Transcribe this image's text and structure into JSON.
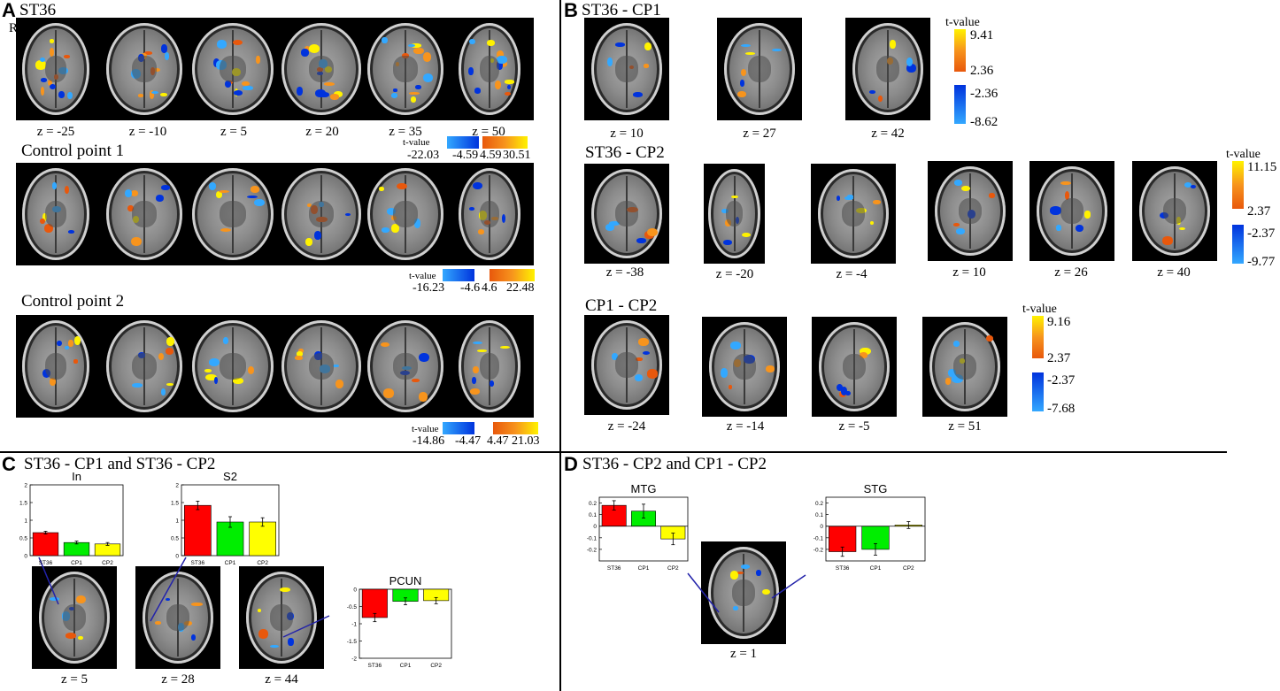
{
  "panels": {
    "A": {
      "label": "A",
      "rows": [
        {
          "title": "ST36",
          "z": [
            "z = -25",
            "z = -10",
            "z = 5",
            "z = 20",
            "z = 35",
            "z = 50"
          ],
          "tlabel": "t-value",
          "neg": [
            "-22.03",
            "-4.59"
          ],
          "pos": [
            "4.59",
            "30.51"
          ]
        },
        {
          "title": "Control point 1",
          "tlabel": "t-value",
          "neg": [
            "-16.23",
            "-4.6"
          ],
          "pos": [
            "4.6",
            "22.48"
          ]
        },
        {
          "title": "Control point 2",
          "tlabel": "t-value",
          "neg": [
            "-14.86",
            "-4.47"
          ],
          "pos": [
            "4.47",
            "21.03"
          ]
        }
      ],
      "side_marker": "R"
    },
    "B": {
      "label": "B",
      "rows": [
        {
          "title": "ST36 - CP1",
          "z": [
            "z = 10",
            "z = 27",
            "z = 42"
          ],
          "tlabel": "t-value",
          "values": [
            "9.41",
            "2.36",
            "-2.36",
            "-8.62"
          ]
        },
        {
          "title": "ST36 - CP2",
          "z": [
            "z = -38",
            "z = -20",
            "z = -4",
            "z = 10",
            "z = 26",
            "z = 40"
          ],
          "tlabel": "t-value",
          "values": [
            "11.15",
            "2.37",
            "-2.37",
            "-9.77"
          ]
        },
        {
          "title": "CP1 - CP2",
          "z": [
            "z = -24",
            "z = -14",
            "z = -5",
            "z = 51"
          ],
          "tlabel": "t-value",
          "values": [
            "9.16",
            "2.37",
            "-2.37",
            "-7.68"
          ]
        }
      ]
    },
    "C": {
      "label": "C",
      "title": "ST36 - CP1 and ST36 - CP2",
      "z": [
        "z = 5",
        "z = 28",
        "z = 44"
      ]
    },
    "D": {
      "label": "D",
      "title": "ST36 - CP2 and CP1 - CP2",
      "z": [
        "z = 1"
      ]
    }
  },
  "colors": {
    "pos_dark": "#e8580c",
    "pos_mid": "#f7941d",
    "pos_light": "#fff200",
    "neg_dark": "#0033dd",
    "neg_light": "#33a8ff",
    "bar_st36": "#ff0000",
    "bar_cp1": "#00ee00",
    "bar_cp2": "#ffff00"
  },
  "chart_data": [
    {
      "type": "bar",
      "title": "In",
      "categories": [
        "ST36",
        "CP1",
        "CP2"
      ],
      "values": [
        0.65,
        0.37,
        0.33
      ],
      "errors": [
        0.04,
        0.04,
        0.04
      ],
      "ylim": [
        0,
        2
      ],
      "yticks": [
        "0",
        "0.5",
        "1",
        "1.5",
        "2"
      ]
    },
    {
      "type": "bar",
      "title": "S2",
      "categories": [
        "ST36",
        "CP1",
        "CP2"
      ],
      "values": [
        1.42,
        0.95,
        0.95
      ],
      "errors": [
        0.12,
        0.15,
        0.12
      ],
      "ylim": [
        0,
        2
      ],
      "yticks": [
        "0",
        "0.5",
        "1",
        "1.5",
        "2"
      ]
    },
    {
      "type": "bar",
      "title": "PCUN",
      "categories": [
        "ST36",
        "CP1",
        "CP2"
      ],
      "values": [
        -0.82,
        -0.35,
        -0.33
      ],
      "errors": [
        0.12,
        0.1,
        0.09
      ],
      "ylim": [
        -2,
        0
      ],
      "yticks": [
        "-2",
        "-1.5",
        "-1",
        "-0.5",
        "0"
      ]
    },
    {
      "type": "bar",
      "title": "MTG",
      "categories": [
        "ST36",
        "CP1",
        "CP2"
      ],
      "values": [
        0.18,
        0.13,
        -0.11
      ],
      "errors": [
        0.04,
        0.06,
        0.05
      ],
      "ylim": [
        -0.3,
        0.25
      ],
      "yticks": [
        "-0.2",
        "-0.1",
        "0",
        "0.1",
        "0.2"
      ]
    },
    {
      "type": "bar",
      "title": "STG",
      "categories": [
        "ST36",
        "CP1",
        "CP2"
      ],
      "values": [
        -0.22,
        -0.2,
        0.01
      ],
      "errors": [
        0.04,
        0.05,
        0.03
      ],
      "ylim": [
        -0.3,
        0.25
      ],
      "yticks": [
        "-0.2",
        "-0.1",
        "0",
        "0.1",
        "0.2"
      ]
    }
  ]
}
